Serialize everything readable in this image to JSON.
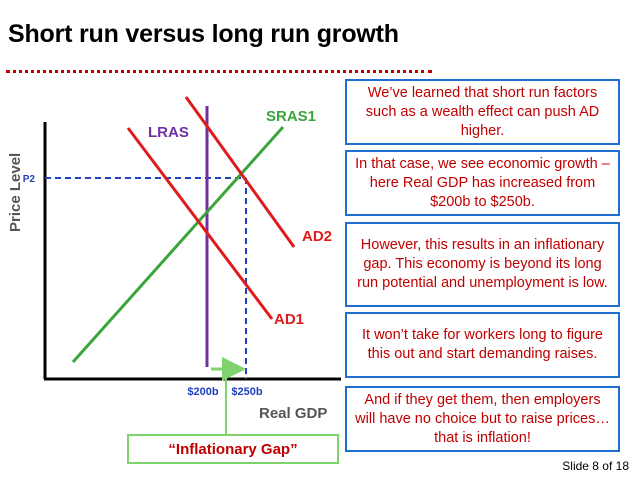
{
  "slide": {
    "title": "Short run versus long run growth",
    "slide_number": "Slide 8 of 18"
  },
  "diagram": {
    "y_axis_label": "Price Level",
    "x_axis_label": "Real GDP",
    "curves": {
      "lras": "LRAS",
      "sras1": "SRAS1",
      "ad1": "AD1",
      "ad2": "AD2"
    },
    "price_label": "P2",
    "gdp_labels": [
      "$200b",
      "$250b"
    ],
    "gap_label": "“Inflationary Gap”",
    "colors": {
      "lras": "#7030a0",
      "sras": "#3aa53a",
      "ad": "#e01b1b",
      "dashed": "#1f3fbf",
      "gap_arrow": "#7fd36e",
      "text_red": "#c00000",
      "box_border": "#1f6fd1"
    }
  },
  "notes": [
    "We’ve learned that short run factors such as a wealth effect can push AD higher.",
    "In that case, we see economic growth – here Real GDP has increased from $200b to $250b.",
    "However, this results in an inflationary gap.  This economy is beyond its long run potential and unemployment is low.",
    "It won’t take for workers long to figure this out and start demanding raises.",
    "And if they get them, then employers will have no choice but to raise prices…that is inflation!"
  ]
}
